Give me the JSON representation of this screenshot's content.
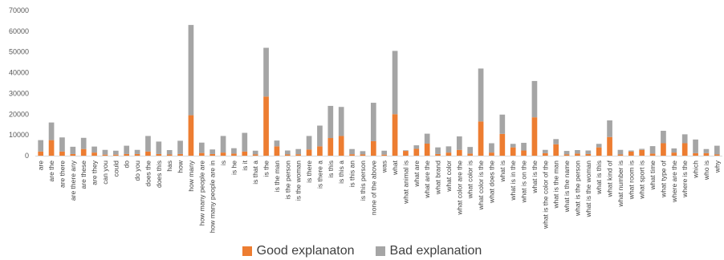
{
  "chart_data": {
    "type": "bar",
    "stacked": true,
    "ylim": [
      0,
      70000
    ],
    "yticks": [
      0,
      10000,
      20000,
      30000,
      40000,
      50000,
      60000,
      70000
    ],
    "grid": false,
    "legend_position": "bottom",
    "categories": [
      "are",
      "are the",
      "are there",
      "are there any",
      "are these",
      "are they",
      "can you",
      "could",
      "do",
      "do you",
      "does the",
      "does this",
      "has",
      "how",
      "how many",
      "how many people are",
      "how many people are in",
      "is",
      "is he",
      "is it",
      "is that a",
      "is the",
      "is the man",
      "is the person",
      "is the woman",
      "is there",
      "is there a",
      "is this",
      "is this a",
      "is this an",
      "is this person",
      "none of the above",
      "was",
      "what",
      "what animal is",
      "what are",
      "what are the",
      "what brand",
      "what color",
      "what color are the",
      "what color is",
      "what color is the",
      "what does the",
      "what is",
      "what is in the",
      "what is on the",
      "what is the",
      "what is the color of the",
      "what is the man",
      "what is the name",
      "what is the person",
      "what is the woman",
      "what is this",
      "what kind of",
      "what number is",
      "what room is",
      "what sport is",
      "what time",
      "what type of",
      "where are the",
      "where is the",
      "which",
      "who is",
      "why"
    ],
    "series": [
      {
        "name": "Good explanaton",
        "color": "#ED7D31",
        "values": [
          2000,
          7500,
          2000,
          800,
          3200,
          1500,
          500,
          500,
          800,
          800,
          2000,
          800,
          600,
          800,
          19500,
          1300,
          800,
          1500,
          1000,
          2000,
          600,
          28500,
          4500,
          600,
          700,
          3000,
          4500,
          8500,
          9500,
          700,
          600,
          7000,
          500,
          20000,
          2300,
          3300,
          5800,
          800,
          1500,
          2800,
          1000,
          16500,
          1500,
          10500,
          4000,
          2500,
          18500,
          1200,
          5500,
          600,
          1000,
          800,
          4000,
          9000,
          600,
          2000,
          2800,
          1000,
          6000,
          1500,
          6000,
          1200,
          1200,
          600
        ]
      },
      {
        "name": "Bad explanation",
        "color": "#A5A5A5",
        "values": [
          5500,
          8500,
          6800,
          3500,
          5400,
          2900,
          2300,
          1900,
          4000,
          2000,
          7500,
          6000,
          2100,
          6400,
          43500,
          5000,
          2200,
          8000,
          2600,
          9000,
          1800,
          23500,
          2800,
          1900,
          2500,
          6500,
          10000,
          15500,
          14000,
          2500,
          1600,
          18500,
          1900,
          30500,
          300,
          1700,
          4800,
          3200,
          3000,
          6500,
          3200,
          25500,
          4500,
          9300,
          1700,
          3700,
          17500,
          1600,
          2500,
          1700,
          1700,
          1700,
          1700,
          8000,
          2200,
          500,
          500,
          3600,
          6000,
          2000,
          4300,
          6600,
          2000,
          4200
        ]
      }
    ]
  }
}
